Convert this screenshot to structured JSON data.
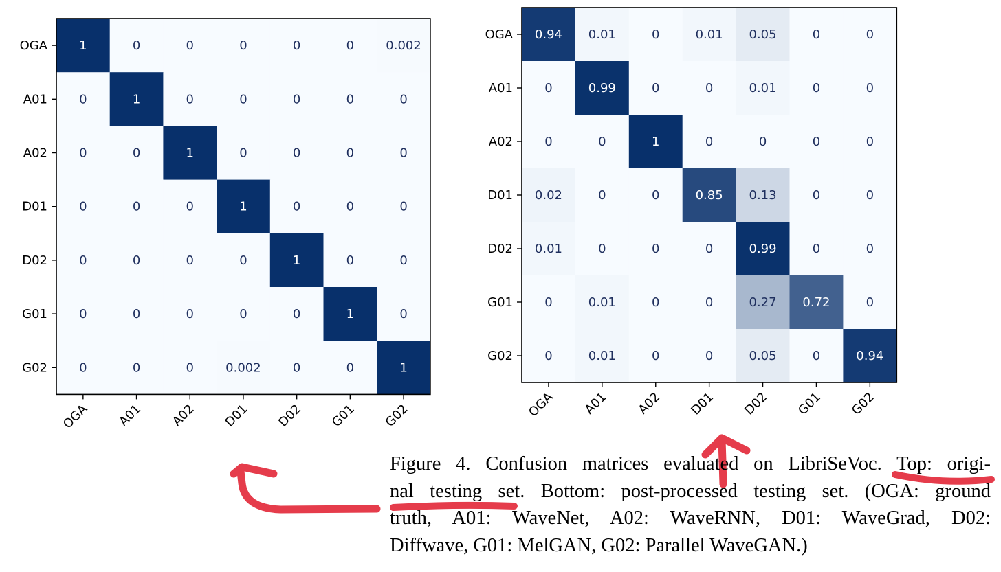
{
  "colors": {
    "cmap_low": "#f7fbff",
    "cmap_high": "#08306b",
    "annotation": "#e53c4b"
  },
  "labels": [
    "OGA",
    "A01",
    "A02",
    "D01",
    "D02",
    "G01",
    "G02"
  ],
  "chart_data": [
    {
      "type": "heatmap",
      "name": "Top: original testing set",
      "colormap": "Blues",
      "x_tick_labels": [
        "OGA",
        "A01",
        "A02",
        "D01",
        "D02",
        "G01",
        "G02"
      ],
      "y_tick_labels": [
        "OGA",
        "A01",
        "A02",
        "D01",
        "D02",
        "G01",
        "G02"
      ],
      "values": [
        [
          1,
          0,
          0,
          0,
          0,
          0,
          0.002
        ],
        [
          0,
          1,
          0,
          0,
          0,
          0,
          0
        ],
        [
          0,
          0,
          1,
          0,
          0,
          0,
          0
        ],
        [
          0,
          0,
          0,
          1,
          0,
          0,
          0
        ],
        [
          0,
          0,
          0,
          0,
          1,
          0,
          0
        ],
        [
          0,
          0,
          0,
          0,
          0,
          1,
          0
        ],
        [
          0,
          0,
          0,
          0.002,
          0,
          0,
          1
        ]
      ],
      "cell_labels": [
        [
          "1",
          "0",
          "0",
          "0",
          "0",
          "0",
          "0.002"
        ],
        [
          "0",
          "1",
          "0",
          "0",
          "0",
          "0",
          "0"
        ],
        [
          "0",
          "0",
          "1",
          "0",
          "0",
          "0",
          "0"
        ],
        [
          "0",
          "0",
          "0",
          "1",
          "0",
          "0",
          "0"
        ],
        [
          "0",
          "0",
          "0",
          "0",
          "1",
          "0",
          "0"
        ],
        [
          "0",
          "0",
          "0",
          "0",
          "0",
          "1",
          "0"
        ],
        [
          "0",
          "0",
          "0",
          "0.002",
          "0",
          "0",
          "1"
        ]
      ]
    },
    {
      "type": "heatmap",
      "name": "Bottom: post-processed testing set",
      "colormap": "Blues",
      "x_tick_labels": [
        "OGA",
        "A01",
        "A02",
        "D01",
        "D02",
        "G01",
        "G02"
      ],
      "y_tick_labels": [
        "OGA",
        "A01",
        "A02",
        "D01",
        "D02",
        "G01",
        "G02"
      ],
      "values": [
        [
          0.94,
          0.01,
          0,
          0.01,
          0.05,
          0,
          0
        ],
        [
          0,
          0.99,
          0,
          0,
          0.01,
          0,
          0
        ],
        [
          0,
          0,
          1,
          0,
          0,
          0,
          0
        ],
        [
          0.02,
          0,
          0,
          0.85,
          0.13,
          0,
          0
        ],
        [
          0.01,
          0,
          0,
          0,
          0.99,
          0,
          0
        ],
        [
          0,
          0.01,
          0,
          0,
          0.27,
          0.72,
          0
        ],
        [
          0,
          0.01,
          0,
          0,
          0.05,
          0,
          0.94
        ]
      ],
      "cell_labels": [
        [
          "0.94",
          "0.01",
          "0",
          "0.01",
          "0.05",
          "0",
          "0"
        ],
        [
          "0",
          "0.99",
          "0",
          "0",
          "0.01",
          "0",
          "0"
        ],
        [
          "0",
          "0",
          "1",
          "0",
          "0",
          "0",
          "0"
        ],
        [
          "0.02",
          "0",
          "0",
          "0.85",
          "0.13",
          "0",
          "0"
        ],
        [
          "0.01",
          "0",
          "0",
          "0",
          "0.99",
          "0",
          "0"
        ],
        [
          "0",
          "0.01",
          "0",
          "0",
          "0.27",
          "0.72",
          "0"
        ],
        [
          "0",
          "0.01",
          "0",
          "0",
          "0.05",
          "0",
          "0.94"
        ]
      ]
    }
  ],
  "caption": {
    "lines": [
      "Figure 4. Confusion matrices evaluated on LibriSeVoc. Top: origi-",
      "nal testing set. Bottom: post-processed testing set. (OGA: ground",
      "truth, A01: WaveNet, A02: WaveRNN, D01: WaveGrad, D02:",
      "Diffwave, G01: MelGAN, G02: Parallel WaveGAN.)"
    ]
  }
}
